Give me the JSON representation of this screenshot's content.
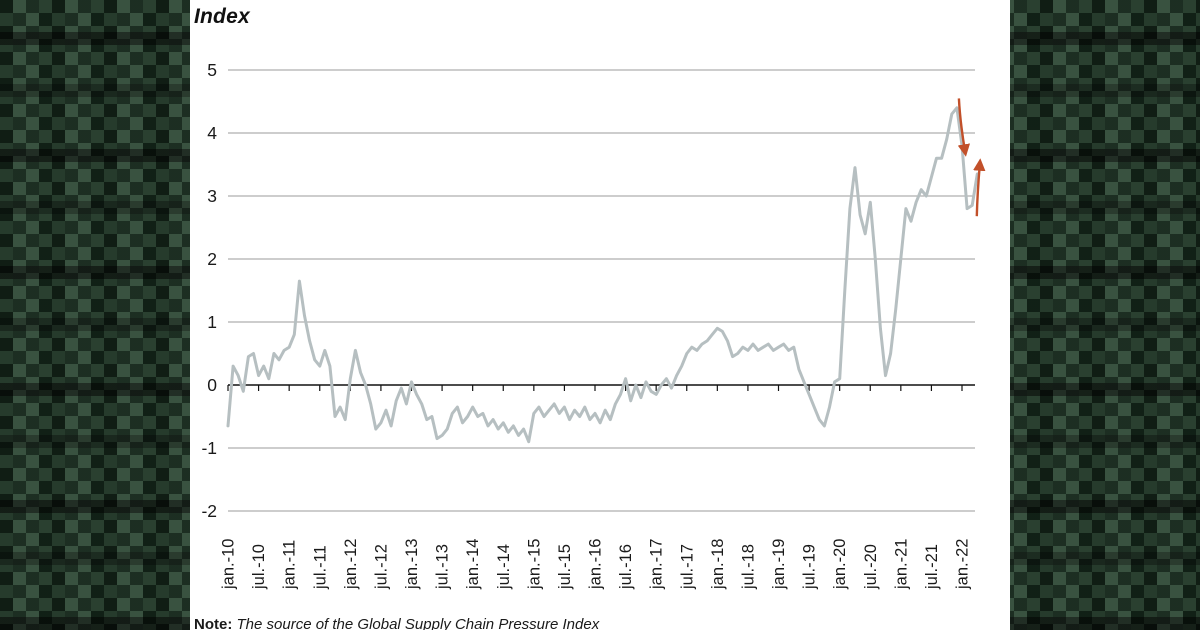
{
  "chart_title": "Index",
  "note": {
    "label": "Note:",
    "text": "The source of the Global Supply Chain Pressure Index"
  },
  "colors": {
    "background_green": "#1d3526",
    "panel": "#ffffff",
    "line": "#b6bfc1",
    "grid": "#9b9b9b",
    "zero_line": "#111111",
    "axis_text": "#1a1a1a",
    "arrow": "#c2502a"
  },
  "chart_data": {
    "type": "line",
    "title": "Index",
    "xlabel": "",
    "ylabel": "Index",
    "ylim": [
      -2,
      5
    ],
    "yticks": [
      5,
      4,
      3,
      2,
      1,
      0,
      -1,
      -2
    ],
    "grid": true,
    "legend": "none",
    "x_tick_every_months": 6,
    "x_tick_labels": [
      "jan.-10",
      "jul.-10",
      "jan.-11",
      "jul.-11",
      "jan.-12",
      "jul.-12",
      "jan.-13",
      "jul.-13",
      "jan.-14",
      "jul.-14",
      "jan.-15",
      "jul.-15",
      "jan.-16",
      "jul.-16",
      "jan.-17",
      "jul.-17",
      "jan.-18",
      "jul.-18",
      "jan.-19",
      "jul.-19",
      "jan.-20",
      "jul.-20",
      "jan.-21",
      "jul.-21",
      "jan.-22"
    ],
    "series": [
      {
        "name": "Global Supply Chain Pressure Index",
        "start_month": "2010-01",
        "frequency": "monthly",
        "values": [
          -0.65,
          0.3,
          0.15,
          -0.1,
          0.45,
          0.5,
          0.15,
          0.3,
          0.1,
          0.5,
          0.4,
          0.55,
          0.6,
          0.8,
          1.65,
          1.1,
          0.7,
          0.4,
          0.3,
          0.55,
          0.3,
          -0.5,
          -0.35,
          -0.55,
          0.1,
          0.55,
          0.2,
          0.0,
          -0.3,
          -0.7,
          -0.6,
          -0.4,
          -0.65,
          -0.25,
          -0.05,
          -0.3,
          0.05,
          -0.15,
          -0.3,
          -0.55,
          -0.5,
          -0.85,
          -0.8,
          -0.7,
          -0.45,
          -0.35,
          -0.6,
          -0.5,
          -0.35,
          -0.5,
          -0.45,
          -0.65,
          -0.55,
          -0.7,
          -0.6,
          -0.75,
          -0.65,
          -0.8,
          -0.7,
          -0.9,
          -0.45,
          -0.35,
          -0.5,
          -0.4,
          -0.3,
          -0.45,
          -0.35,
          -0.55,
          -0.4,
          -0.5,
          -0.35,
          -0.55,
          -0.45,
          -0.6,
          -0.4,
          -0.55,
          -0.3,
          -0.15,
          0.1,
          -0.25,
          0.0,
          -0.2,
          0.05,
          -0.1,
          -0.15,
          0.0,
          0.1,
          -0.05,
          0.15,
          0.3,
          0.5,
          0.6,
          0.55,
          0.65,
          0.7,
          0.8,
          0.9,
          0.85,
          0.7,
          0.45,
          0.5,
          0.6,
          0.55,
          0.65,
          0.55,
          0.6,
          0.65,
          0.55,
          0.6,
          0.65,
          0.55,
          0.6,
          0.25,
          0.05,
          -0.15,
          -0.35,
          -0.55,
          -0.65,
          -0.35,
          0.05,
          0.1,
          1.5,
          2.8,
          3.45,
          2.7,
          2.4,
          2.9,
          2.0,
          0.9,
          0.15,
          0.5,
          1.2,
          2.0,
          2.8,
          2.6,
          2.9,
          3.1,
          3.0,
          3.3,
          3.6,
          3.6,
          3.9,
          4.3,
          4.4,
          3.8,
          2.8,
          2.85,
          3.35
        ]
      }
    ],
    "annotations": [
      {
        "type": "arrow",
        "direction": "down",
        "x_month": 143.4,
        "y_from": 4.55,
        "y_to": 3.72
      },
      {
        "type": "arrow",
        "direction": "up",
        "x_month": 146.9,
        "y_from": 2.68,
        "y_to": 3.5
      }
    ]
  }
}
